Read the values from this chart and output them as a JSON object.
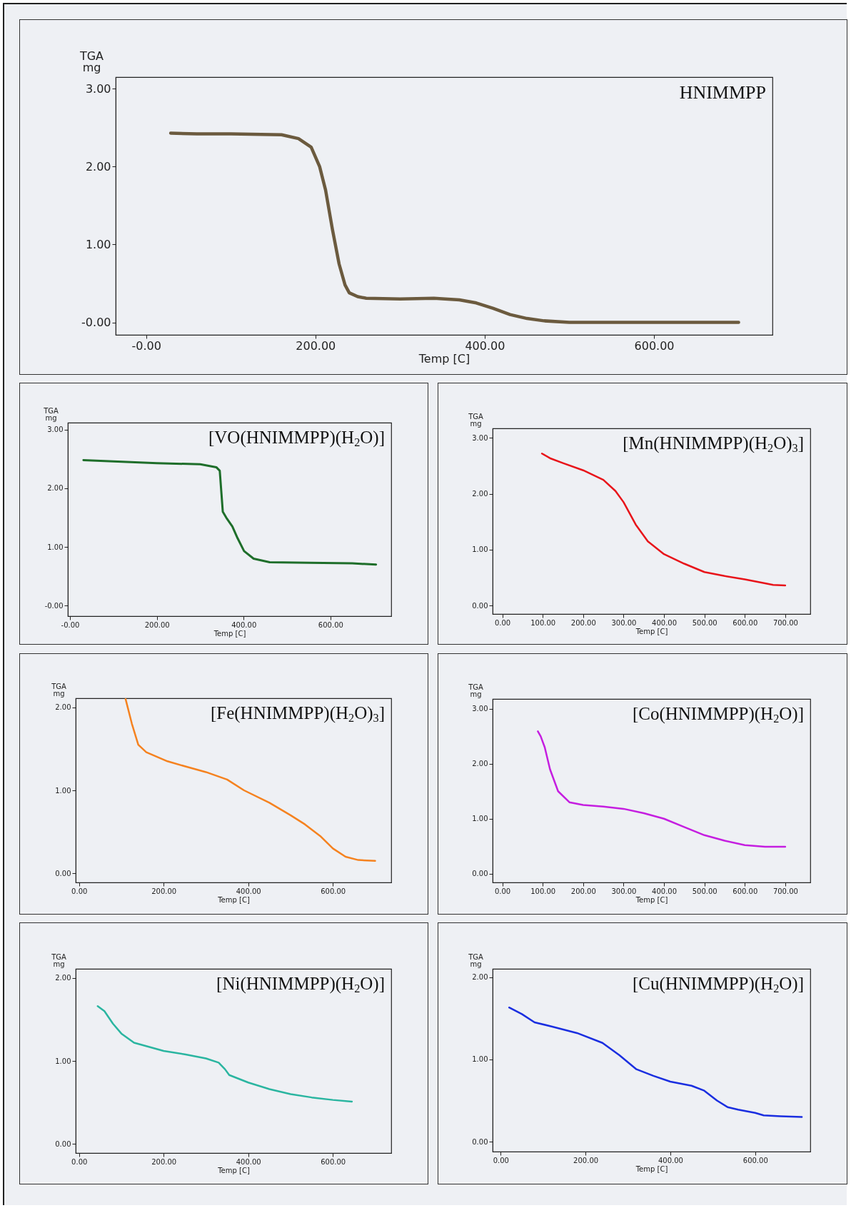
{
  "chart_data": [
    {
      "type": "line",
      "title": "HNIMMPP",
      "xlabel": "Temp  [C]",
      "ylabel": "TGA\nmg",
      "color": "#6b5a3e",
      "xlim": [
        -36,
        740
      ],
      "ylim": [
        -0.16,
        3.15
      ],
      "xticks": [
        {
          "value": 0,
          "label": "-0.00"
        },
        {
          "value": 200,
          "label": "200.00"
        },
        {
          "value": 400,
          "label": "400.00"
        },
        {
          "value": 600,
          "label": "600.00"
        }
      ],
      "yticks": [
        {
          "value": 0,
          "label": "-0.00"
        },
        {
          "value": 1,
          "label": "1.00"
        },
        {
          "value": 2,
          "label": "2.00"
        },
        {
          "value": 3,
          "label": "3.00"
        }
      ],
      "x": [
        29,
        60,
        100,
        160,
        180,
        195,
        205,
        212,
        220,
        228,
        235,
        240,
        250,
        260,
        300,
        340,
        370,
        390,
        410,
        430,
        450,
        470,
        500,
        600,
        700
      ],
      "values": [
        2.43,
        2.42,
        2.42,
        2.41,
        2.36,
        2.25,
        2.0,
        1.7,
        1.2,
        0.75,
        0.48,
        0.38,
        0.33,
        0.31,
        0.3,
        0.31,
        0.29,
        0.25,
        0.18,
        0.1,
        0.05,
        0.02,
        0.0,
        0.0,
        0.0
      ]
    },
    {
      "type": "line",
      "title": "[VO(HNIMMPP)(H$_{2}$O)]",
      "xlabel": "Temp  [C]",
      "ylabel": "TGA\nmg",
      "color": "#1e6e2a",
      "xlim": [
        -5,
        740
      ],
      "ylim": [
        -0.18,
        3.12
      ],
      "xticks": [
        {
          "value": 0,
          "label": "-0.00"
        },
        {
          "value": 200,
          "label": "200.00"
        },
        {
          "value": 400,
          "label": "400.00"
        },
        {
          "value": 600,
          "label": "600.00"
        }
      ],
      "yticks": [
        {
          "value": 0,
          "label": "-0.00"
        },
        {
          "value": 1,
          "label": "1.00"
        },
        {
          "value": 2,
          "label": "2.00"
        },
        {
          "value": 3,
          "label": "3.00"
        }
      ],
      "x": [
        31,
        100,
        200,
        300,
        337,
        345,
        349,
        352,
        360,
        374,
        386,
        401,
        423,
        460,
        550,
        650,
        705
      ],
      "values": [
        2.48,
        2.46,
        2.43,
        2.41,
        2.36,
        2.3,
        1.9,
        1.6,
        1.5,
        1.35,
        1.15,
        0.93,
        0.8,
        0.74,
        0.73,
        0.72,
        0.7
      ]
    },
    {
      "type": "line",
      "title": "[Mn(HNIMMPP)(H$_{2}$O)$_{3}$]",
      "xlabel": "Temp  [C]",
      "ylabel": "TGA\nmg",
      "color": "#e8141a",
      "xlim": [
        -24,
        762
      ],
      "ylim": [
        -0.15,
        3.17
      ],
      "xticks": [
        {
          "value": 0,
          "label": "0.00"
        },
        {
          "value": 100,
          "label": "100.00"
        },
        {
          "value": 200,
          "label": "200.00"
        },
        {
          "value": 300,
          "label": "300.00"
        },
        {
          "value": 400,
          "label": "400.00"
        },
        {
          "value": 500,
          "label": "500.00"
        },
        {
          "value": 600,
          "label": "600.00"
        },
        {
          "value": 700,
          "label": "700.00"
        }
      ],
      "yticks": [
        {
          "value": 0,
          "label": "0.00"
        },
        {
          "value": 1,
          "label": "1.00"
        },
        {
          "value": 2,
          "label": "2.00"
        },
        {
          "value": 3,
          "label": "3.00"
        }
      ],
      "x": [
        98,
        120,
        150,
        200,
        250,
        280,
        300,
        330,
        360,
        400,
        450,
        500,
        550,
        600,
        650,
        670,
        700
      ],
      "values": [
        2.72,
        2.63,
        2.55,
        2.42,
        2.25,
        2.05,
        1.85,
        1.45,
        1.15,
        0.92,
        0.75,
        0.6,
        0.53,
        0.47,
        0.4,
        0.37,
        0.36
      ]
    },
    {
      "type": "line",
      "title": "[Fe(HNIMMPP)(H$_{2}$O)$_{3}$]",
      "xlabel": "Temp  [C]",
      "ylabel": "TGA\nmg",
      "color": "#f5821f",
      "xlim": [
        -8,
        738
      ],
      "ylim": [
        -0.11,
        2.11
      ],
      "xticks": [
        {
          "value": 0,
          "label": "0.00"
        },
        {
          "value": 200,
          "label": "200.00"
        },
        {
          "value": 400,
          "label": "400.00"
        },
        {
          "value": 600,
          "label": "600.00"
        }
      ],
      "yticks": [
        {
          "value": 0,
          "label": "0.00"
        },
        {
          "value": 1,
          "label": "1.00"
        },
        {
          "value": 2,
          "label": "2.00"
        }
      ],
      "x": [
        110,
        125,
        140,
        159,
        209,
        250,
        300,
        350,
        390,
        450,
        500,
        534,
        570,
        600,
        630,
        660,
        700
      ],
      "values": [
        2.1,
        1.8,
        1.55,
        1.46,
        1.35,
        1.29,
        1.22,
        1.13,
        1.0,
        0.85,
        0.7,
        0.59,
        0.45,
        0.3,
        0.2,
        0.16,
        0.15
      ]
    },
    {
      "type": "line",
      "title": "[Co(HNIMMPP)(H$_{2}$O)]",
      "xlabel": "Temp  [C]",
      "ylabel": "TGA\nmg",
      "color": "#c51ee0",
      "xlim": [
        -24,
        762
      ],
      "ylim": [
        -0.16,
        3.18
      ],
      "xticks": [
        {
          "value": 0,
          "label": "0.00"
        },
        {
          "value": 100,
          "label": "100.00"
        },
        {
          "value": 200,
          "label": "200.00"
        },
        {
          "value": 300,
          "label": "300.00"
        },
        {
          "value": 400,
          "label": "400.00"
        },
        {
          "value": 500,
          "label": "500.00"
        },
        {
          "value": 600,
          "label": "600.00"
        },
        {
          "value": 700,
          "label": "700.00"
        }
      ],
      "yticks": [
        {
          "value": 0,
          "label": "0.00"
        },
        {
          "value": 1,
          "label": "1.00"
        },
        {
          "value": 2,
          "label": "2.00"
        },
        {
          "value": 3,
          "label": "3.00"
        }
      ],
      "x": [
        88,
        95,
        105,
        118,
        138,
        166,
        200,
        250,
        300,
        350,
        400,
        450,
        500,
        550,
        600,
        650,
        700
      ],
      "values": [
        2.59,
        2.5,
        2.3,
        1.9,
        1.5,
        1.3,
        1.25,
        1.22,
        1.18,
        1.1,
        1.0,
        0.85,
        0.7,
        0.6,
        0.52,
        0.49,
        0.49
      ]
    },
    {
      "type": "line",
      "title": "[Ni(HNIMMPP)(H$_{2}$O)]",
      "xlabel": "Temp  [C]",
      "ylabel": "TGA\nmg",
      "color": "#2ab5a0",
      "xlim": [
        -8,
        738
      ],
      "ylim": [
        -0.11,
        2.11
      ],
      "xticks": [
        {
          "value": 0,
          "label": "0.00"
        },
        {
          "value": 200,
          "label": "200.00"
        },
        {
          "value": 400,
          "label": "400.00"
        },
        {
          "value": 600,
          "label": "600.00"
        }
      ],
      "yticks": [
        {
          "value": 0,
          "label": "0.00"
        },
        {
          "value": 1,
          "label": "1.00"
        },
        {
          "value": 2,
          "label": "2.00"
        }
      ],
      "x": [
        44,
        60,
        80,
        100,
        130,
        200,
        250,
        300,
        330,
        345,
        355,
        400,
        450,
        500,
        550,
        600,
        645
      ],
      "values": [
        1.66,
        1.6,
        1.45,
        1.33,
        1.22,
        1.12,
        1.08,
        1.03,
        0.98,
        0.9,
        0.83,
        0.74,
        0.66,
        0.6,
        0.56,
        0.53,
        0.51
      ]
    },
    {
      "type": "line",
      "title": "[Cu(HNIMMPP)(H$_{2}$O)]",
      "xlabel": "Temp  [C]",
      "ylabel": "TGA\nmg",
      "color": "#1a2ee0",
      "xlim": [
        -19,
        730
      ],
      "ylim": [
        -0.12,
        2.1
      ],
      "xticks": [
        {
          "value": 0,
          "label": "0.00"
        },
        {
          "value": 200,
          "label": "200.00"
        },
        {
          "value": 400,
          "label": "400.00"
        },
        {
          "value": 600,
          "label": "600.00"
        }
      ],
      "yticks": [
        {
          "value": 0,
          "label": "0.00"
        },
        {
          "value": 1,
          "label": "1.00"
        },
        {
          "value": 2,
          "label": "2.00"
        }
      ],
      "x": [
        20,
        50,
        80,
        120,
        180,
        240,
        280,
        320,
        360,
        400,
        450,
        480,
        510,
        535,
        560,
        600,
        620,
        660,
        710
      ],
      "values": [
        1.63,
        1.55,
        1.45,
        1.4,
        1.32,
        1.2,
        1.05,
        0.88,
        0.8,
        0.73,
        0.68,
        0.62,
        0.5,
        0.42,
        0.39,
        0.35,
        0.32,
        0.31,
        0.3
      ]
    }
  ]
}
